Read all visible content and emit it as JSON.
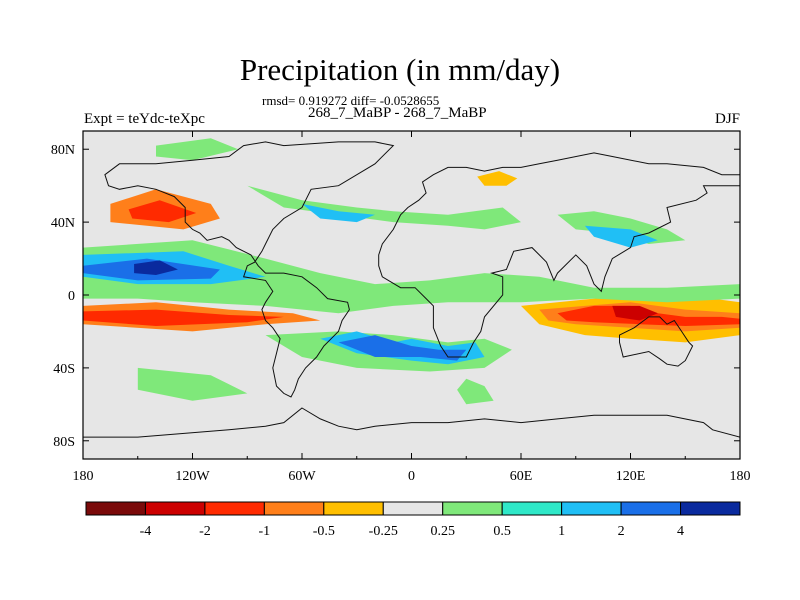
{
  "chart_data": {
    "type": "heatmap",
    "title": "Precipitation (in mm/day)",
    "stats": "rmsd= 0.919272 diff= -0.0528655",
    "subtitle": "268_7_MaBP - 268_7_MaBP",
    "left_label": "Expt = teYdc-teXpc",
    "right_label": "DJF",
    "x_ticks": [
      {
        "lon": -180,
        "label": "180"
      },
      {
        "lon": -120,
        "label": "120W"
      },
      {
        "lon": -60,
        "label": "60W"
      },
      {
        "lon": 0,
        "label": "0"
      },
      {
        "lon": 60,
        "label": "60E"
      },
      {
        "lon": 120,
        "label": "120E"
      },
      {
        "lon": 180,
        "label": "180"
      }
    ],
    "y_ticks": [
      {
        "lat": 80,
        "label": "80N"
      },
      {
        "lat": 40,
        "label": "40N"
      },
      {
        "lat": 0,
        "label": "0"
      },
      {
        "lat": -40,
        "label": "40S"
      },
      {
        "lat": -80,
        "label": "80S"
      }
    ],
    "xlim": [
      -180,
      180
    ],
    "ylim": [
      -90,
      90
    ],
    "colorbar": {
      "colors": [
        "#7a0a0a",
        "#cc0000",
        "#ff2a00",
        "#ff7f1a",
        "#ffbf00",
        "#e6e6e6",
        "#7fe87a",
        "#2fe8c8",
        "#20bff5",
        "#1a6fe8",
        "#0a2a9e"
      ],
      "labels": [
        "-4",
        "-2",
        "-1",
        "-0.5",
        "-0.25",
        "0.25",
        "0.5",
        "1",
        "2",
        "4"
      ]
    },
    "anomaly_regions": [
      {
        "level": -0.25,
        "c": [
          -180,
          82,
          -153,
          88,
          -116,
          80,
          -110,
          70,
          -150,
          66,
          -180,
          72
        ]
      },
      {
        "level": -0.25,
        "c": [
          -180,
          72,
          -150,
          66,
          -112,
          68,
          -97,
          55,
          -100,
          38,
          -125,
          26,
          -180,
          30
        ]
      },
      {
        "level": -1,
        "c": [
          -165,
          50,
          -140,
          58,
          -110,
          50,
          -105,
          42,
          -125,
          36,
          -165,
          40
        ]
      },
      {
        "level": -2,
        "c": [
          -155,
          47,
          -138,
          52,
          -118,
          45,
          -133,
          40,
          -153,
          42
        ]
      },
      {
        "level": -0.25,
        "c": [
          -180,
          -4,
          -150,
          -2,
          -110,
          -6,
          -80,
          -8,
          -50,
          -10,
          -30,
          -14,
          -55,
          -20,
          -110,
          -24,
          -150,
          -22,
          -180,
          -20
        ]
      },
      {
        "level": -1,
        "c": [
          -180,
          -6,
          -140,
          -4,
          -100,
          -8,
          -65,
          -10,
          -50,
          -14,
          -80,
          -16,
          -120,
          -20,
          -180,
          -16
        ]
      },
      {
        "level": -2,
        "c": [
          -180,
          -9,
          -140,
          -8,
          -100,
          -11,
          -70,
          -12,
          -90,
          -15,
          -140,
          -17,
          -180,
          -14
        ]
      },
      {
        "level": -0.25,
        "c": [
          -180,
          -26,
          -160,
          -24,
          -150,
          -32,
          -170,
          -36,
          -180,
          -34
        ]
      },
      {
        "level": -0.25,
        "c": [
          -130,
          -30,
          -95,
          -28,
          -75,
          -34,
          -90,
          -44,
          -120,
          -40
        ]
      },
      {
        "level": -0.25,
        "c": [
          -92,
          84,
          -60,
          86,
          -30,
          80,
          10,
          84,
          60,
          80,
          80,
          74,
          120,
          70,
          150,
          74,
          180,
          66,
          180,
          48,
          165,
          50,
          150,
          60,
          120,
          58,
          90,
          62,
          60,
          66,
          30,
          64,
          10,
          58,
          -20,
          56,
          -40,
          62,
          -70,
          66,
          -92,
          70
        ]
      },
      {
        "level": -0.25,
        "c": [
          30,
          68,
          55,
          72,
          66,
          66,
          60,
          58,
          45,
          56,
          32,
          60
        ]
      },
      {
        "level": -0.5,
        "c": [
          36,
          65,
          48,
          68,
          58,
          64,
          52,
          60,
          40,
          60
        ]
      },
      {
        "level": -0.25,
        "c": [
          150,
          32,
          180,
          34,
          180,
          8,
          165,
          10,
          150,
          16
        ]
      },
      {
        "level": -0.25,
        "c": [
          60,
          16,
          80,
          12,
          95,
          8,
          110,
          4,
          140,
          6,
          180,
          2,
          180,
          -28,
          150,
          -32,
          120,
          -30,
          90,
          -28,
          60,
          -22,
          40,
          -18,
          30,
          -10,
          40,
          -6,
          55,
          4
        ]
      },
      {
        "level": -0.5,
        "c": [
          60,
          -6,
          80,
          -4,
          100,
          -2,
          130,
          0,
          165,
          -2,
          180,
          -4,
          180,
          -22,
          150,
          -26,
          120,
          -24,
          95,
          -22,
          70,
          -16
        ]
      },
      {
        "level": -1,
        "c": [
          70,
          -8,
          95,
          -6,
          120,
          -4,
          150,
          -8,
          180,
          -10,
          180,
          -18,
          150,
          -20,
          120,
          -18,
          90,
          -16,
          75,
          -14
        ]
      },
      {
        "level": -2,
        "c": [
          80,
          -10,
          100,
          -6,
          120,
          -6,
          135,
          -10,
          150,
          -12,
          170,
          -12,
          180,
          -13,
          180,
          -16,
          150,
          -17,
          125,
          -16,
          100,
          -15,
          85,
          -14
        ]
      },
      {
        "level": -4,
        "c": [
          110,
          -6,
          125,
          -6,
          135,
          -10,
          125,
          -14,
          112,
          -12
        ]
      },
      {
        "level": -0.25,
        "c": [
          110,
          -30,
          150,
          -30,
          160,
          -40,
          140,
          -46,
          115,
          -42
        ]
      },
      {
        "level": -0.25,
        "c": [
          92,
          -62,
          140,
          -60,
          170,
          -64,
          160,
          -72,
          120,
          -74,
          95,
          -70
        ]
      },
      {
        "level": -0.25,
        "c": [
          -180,
          -42,
          -140,
          -48,
          -95,
          -46,
          -90,
          -52,
          -120,
          -58,
          -180,
          -58
        ]
      },
      {
        "level": -0.25,
        "c": [
          -50,
          -62,
          -20,
          -60,
          -20,
          -68,
          -45,
          -70
        ]
      },
      {
        "level": 0.25,
        "c": [
          -140,
          82,
          -110,
          86,
          -95,
          80,
          -120,
          74,
          -140,
          76
        ]
      },
      {
        "level": 0.25,
        "c": [
          -180,
          26,
          -120,
          30,
          -80,
          20,
          -50,
          12,
          -20,
          6,
          10,
          8,
          40,
          12,
          70,
          10,
          100,
          4,
          140,
          4,
          180,
          6,
          180,
          -2,
          140,
          -4,
          100,
          -2,
          60,
          -4,
          20,
          -4,
          -10,
          -6,
          -40,
          -10,
          -80,
          -6,
          -120,
          -4,
          -150,
          -2,
          -180,
          -2
        ]
      },
      {
        "level": 1,
        "c": [
          -180,
          22,
          -125,
          24,
          -100,
          16,
          -80,
          10,
          -110,
          6,
          -150,
          6,
          -180,
          10
        ]
      },
      {
        "level": 2,
        "c": [
          -180,
          16,
          -145,
          20,
          -105,
          14,
          -110,
          9,
          -150,
          8,
          -180,
          12
        ]
      },
      {
        "level": 4,
        "c": [
          -152,
          17,
          -138,
          19,
          -128,
          14,
          -140,
          11,
          -152,
          12
        ]
      },
      {
        "level": 0.25,
        "c": [
          -90,
          60,
          -60,
          52,
          -30,
          48,
          -10,
          46,
          20,
          44,
          50,
          48,
          60,
          40,
          40,
          36,
          20,
          38,
          -10,
          40,
          -40,
          44,
          -70,
          48
        ]
      },
      {
        "level": 1,
        "c": [
          -60,
          50,
          -40,
          46,
          -20,
          44,
          -30,
          40,
          -50,
          42
        ]
      },
      {
        "level": 0.25,
        "c": [
          80,
          44,
          100,
          46,
          120,
          42,
          140,
          36,
          150,
          30,
          130,
          28,
          110,
          34,
          90,
          36
        ]
      },
      {
        "level": 1,
        "c": [
          95,
          38,
          120,
          36,
          135,
          30,
          120,
          26,
          100,
          32
        ]
      },
      {
        "level": 0.25,
        "c": [
          -80,
          -22,
          -40,
          -20,
          -10,
          -22,
          20,
          -26,
          40,
          -24,
          55,
          -30,
          40,
          -40,
          10,
          -42,
          -30,
          -40,
          -60,
          -34
        ]
      },
      {
        "level": 1,
        "c": [
          -50,
          -24,
          -30,
          -20,
          -10,
          -26,
          0,
          -24,
          20,
          -28,
          35,
          -26,
          40,
          -34,
          20,
          -38,
          0,
          -36,
          -30,
          -32
        ]
      },
      {
        "level": 2,
        "c": [
          -40,
          -26,
          -20,
          -22,
          0,
          -28,
          15,
          -30,
          30,
          -30,
          25,
          -36,
          5,
          -34,
          -20,
          -34
        ]
      },
      {
        "level": 0.25,
        "c": [
          -150,
          -40,
          -110,
          -44,
          -90,
          -54,
          -120,
          -58,
          -150,
          -52
        ]
      },
      {
        "level": 0.25,
        "c": [
          30,
          -46,
          40,
          -50,
          45,
          -58,
          30,
          -60,
          25,
          -52
        ]
      }
    ],
    "land_outlines": [
      [
        -168,
        66,
        -160,
        72,
        -140,
        72,
        -120,
        74,
        -100,
        76,
        -92,
        82,
        -80,
        84,
        -70,
        82,
        -40,
        84,
        -20,
        84,
        -10,
        82,
        -20,
        72,
        -40,
        60,
        -55,
        58,
        -60,
        48,
        -70,
        42,
        -76,
        36,
        -80,
        28,
        -82,
        24,
        -86,
        18,
        -90,
        16,
        -92,
        10,
        -80,
        8,
        -76,
        2,
        -80,
        -4,
        -82,
        -8,
        -80,
        -14,
        -76,
        -18,
        -72,
        -24,
        -74,
        -32,
        -76,
        -40,
        -74,
        -50,
        -70,
        -54,
        -66,
        -56,
        -64,
        -52,
        -62,
        -46,
        -58,
        -40,
        -52,
        -34,
        -48,
        -28,
        -44,
        -24,
        -40,
        -20,
        -38,
        -14,
        -34,
        -8,
        -35,
        -4,
        -46,
        -2,
        -52,
        4,
        -60,
        10,
        -70,
        12,
        -80,
        12,
        -84,
        16,
        -88,
        22,
        -96,
        26,
        -100,
        30,
        -104,
        32,
        -112,
        30,
        -116,
        34,
        -120,
        36,
        -124,
        40,
        -124,
        48,
        -130,
        54,
        -140,
        58,
        -150,
        60,
        -160,
        58,
        -166,
        60,
        -168,
        66
      ],
      [
        -10,
        36,
        -6,
        44,
        -2,
        48,
        4,
        52,
        8,
        56,
        6,
        62,
        12,
        66,
        20,
        70,
        30,
        70,
        40,
        68,
        50,
        70,
        60,
        70,
        70,
        72,
        80,
        74,
        100,
        78,
        110,
        76,
        130,
        72,
        140,
        72,
        160,
        70,
        170,
        66,
        180,
        66,
        180,
        60,
        160,
        60,
        162,
        56,
        156,
        52,
        140,
        48,
        142,
        40,
        130,
        34,
        122,
        32,
        120,
        26,
        110,
        20,
        106,
        10,
        104,
        2,
        100,
        6,
        96,
        16,
        90,
        22,
        80,
        12,
        78,
        8,
        74,
        18,
        70,
        22,
        66,
        26,
        56,
        24,
        52,
        14,
        44,
        12,
        50,
        10,
        50,
        0,
        40,
        -12,
        38,
        -20,
        34,
        -26,
        30,
        -34,
        20,
        -34,
        16,
        -28,
        12,
        -18,
        12,
        -6,
        8,
        -2,
        2,
        4,
        -6,
        4,
        -16,
        10,
        -18,
        16,
        -18,
        22,
        -16,
        28,
        -10,
        36
      ],
      [
        114,
        -22,
        122,
        -18,
        130,
        -12,
        136,
        -12,
        140,
        -16,
        144,
        -14,
        148,
        -20,
        152,
        -26,
        154,
        -28,
        150,
        -36,
        146,
        -39,
        140,
        -38,
        136,
        -35,
        130,
        -31,
        116,
        -34,
        114,
        -26,
        114,
        -22
      ],
      [
        -60,
        -62,
        -50,
        -68,
        -40,
        -72,
        -30,
        -74,
        -20,
        -72,
        0,
        -70,
        20,
        -70,
        40,
        -68,
        60,
        -70,
        80,
        -68,
        100,
        -66,
        120,
        -66,
        140,
        -66,
        160,
        -70,
        165,
        -74,
        180,
        -78,
        180,
        -90,
        -180,
        -90,
        -180,
        -78,
        -150,
        -78,
        -100,
        -74,
        -80,
        -72,
        -70,
        -70,
        -60,
        -62
      ]
    ]
  }
}
